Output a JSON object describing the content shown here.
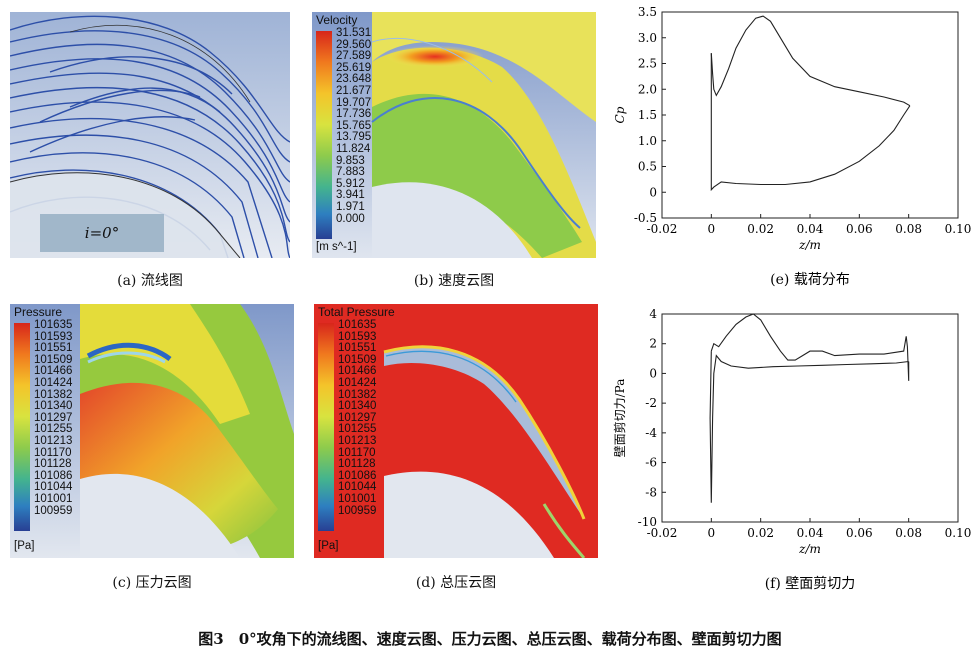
{
  "figure_caption": "图3　0°攻角下的流线图、速度云图、压力云图、总压云图、载荷分布图、壁面剪切力图",
  "panel_a": {
    "caption": "(a) 流线图",
    "incidence": "i=0°"
  },
  "panel_b": {
    "caption": "(b) 速度云图",
    "legend_title": "Velocity",
    "unit": "[m s^-1]",
    "levels": [
      "31.531",
      "29.560",
      "27.589",
      "25.619",
      "23.648",
      "21.677",
      "19.707",
      "17.736",
      "15.765",
      "13.795",
      "11.824",
      "9.853",
      "7.883",
      "5.912",
      "3.941",
      "1.971",
      "0.000"
    ]
  },
  "panel_c": {
    "caption": "(c) 压力云图",
    "legend_title": "Pressure",
    "unit": "[Pa]",
    "levels": [
      "101635",
      "101593",
      "101551",
      "101509",
      "101466",
      "101424",
      "101382",
      "101340",
      "101297",
      "101255",
      "101213",
      "101170",
      "101128",
      "101086",
      "101044",
      "101001",
      "100959"
    ]
  },
  "panel_d": {
    "caption": "(d) 总压云图",
    "legend_title": "Total Pressure",
    "unit": "[Pa]",
    "levels": [
      "101635",
      "101593",
      "101551",
      "101509",
      "101466",
      "101424",
      "101382",
      "101340",
      "101297",
      "101255",
      "101213",
      "101170",
      "101128",
      "101086",
      "101044",
      "101001",
      "100959"
    ]
  },
  "chart_data": [
    {
      "type": "line",
      "caption": "(e) 载荷分布",
      "xlabel": "z/m",
      "ylabel": "Cp",
      "xlim": [
        -0.02,
        0.1
      ],
      "ylim": [
        -0.5,
        3.5
      ],
      "xticks": [
        "-0.02",
        "0",
        "0.02",
        "0.04",
        "0.06",
        "0.08",
        "0.10"
      ],
      "yticks": [
        "3.5",
        "3.0",
        "2.5",
        "2.0",
        "1.5",
        "1.0",
        "0.5",
        "0",
        "-0.5"
      ],
      "series": [
        {
          "x": [
            0.0,
            0.0005,
            0.001,
            0.002,
            0.004,
            0.007,
            0.01,
            0.014,
            0.018,
            0.021,
            0.024,
            0.028,
            0.033,
            0.04,
            0.05,
            0.06,
            0.07,
            0.078,
            0.0805
          ],
          "y": [
            2.7,
            2.3,
            2.0,
            1.88,
            2.05,
            2.4,
            2.8,
            3.15,
            3.38,
            3.42,
            3.32,
            3.0,
            2.6,
            2.25,
            2.05,
            1.95,
            1.85,
            1.75,
            1.68
          ]
        },
        {
          "x": [
            0.0805,
            0.078,
            0.074,
            0.068,
            0.06,
            0.05,
            0.04,
            0.03,
            0.02,
            0.01,
            0.004,
            0.001,
            0.0,
            0.0,
            0.0
          ],
          "y": [
            1.68,
            1.5,
            1.2,
            0.9,
            0.6,
            0.35,
            0.2,
            0.15,
            0.15,
            0.17,
            0.2,
            0.1,
            0.05,
            1.0,
            2.7
          ]
        }
      ]
    },
    {
      "type": "line",
      "caption": "(f) 壁面剪切力",
      "xlabel": "z/m",
      "ylabel": "壁面剪切力/Pa",
      "xlim": [
        -0.02,
        0.1
      ],
      "ylim": [
        -10,
        4
      ],
      "xticks": [
        "-0.02",
        "0",
        "0.02",
        "0.04",
        "0.06",
        "0.08",
        "0.10"
      ],
      "yticks": [
        "4",
        "2",
        "0",
        "-2",
        "-4",
        "-6",
        "-8",
        "-10"
      ],
      "series": [
        {
          "x": [
            0.0,
            0.001,
            0.003,
            0.006,
            0.01,
            0.014,
            0.017,
            0.02,
            0.024,
            0.028,
            0.031,
            0.034,
            0.037,
            0.04,
            0.045,
            0.05,
            0.06,
            0.07,
            0.078,
            0.079,
            0.0795,
            0.08,
            0.08
          ],
          "y": [
            1.5,
            2.0,
            1.8,
            2.5,
            3.3,
            3.8,
            4.0,
            3.6,
            2.5,
            1.5,
            0.9,
            0.9,
            1.2,
            1.5,
            1.5,
            1.2,
            1.3,
            1.3,
            1.5,
            2.5,
            1.8,
            -0.5,
            0.8
          ]
        },
        {
          "x": [
            0.08,
            0.075,
            0.065,
            0.055,
            0.045,
            0.035,
            0.025,
            0.015,
            0.008,
            0.004,
            0.002,
            0.001,
            0.0005,
            0.0,
            -0.0005,
            0.0
          ],
          "y": [
            0.8,
            0.7,
            0.65,
            0.6,
            0.55,
            0.5,
            0.45,
            0.35,
            0.5,
            0.8,
            1.2,
            0.0,
            -3.0,
            -8.7,
            -3.0,
            1.5
          ]
        }
      ]
    }
  ]
}
